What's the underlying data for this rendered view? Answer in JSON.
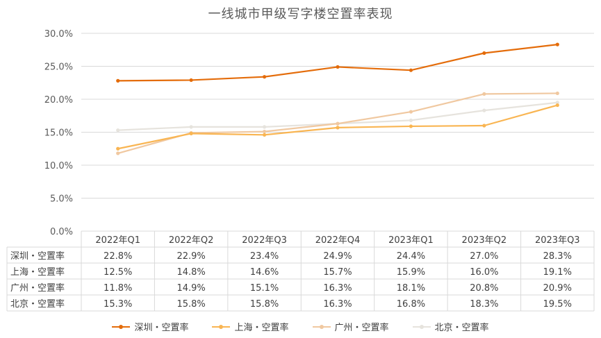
{
  "chart_data": {
    "type": "line",
    "title": "一线城市甲级写字楼空置率表现",
    "categories": [
      "2022年Q1",
      "2022年Q2",
      "2022年Q3",
      "2022年Q4",
      "2023年Q1",
      "2023年Q2",
      "2023年Q3"
    ],
    "y_ticks": [
      "30.0%",
      "25.0%",
      "20.0%",
      "15.0%",
      "10.0%",
      "5.0%",
      "0.0%"
    ],
    "ylim": [
      0,
      30
    ],
    "grid": true,
    "legend_position": "bottom",
    "series": [
      {
        "name": "深圳・空置率",
        "color": "#e46c0a",
        "values": [
          22.8,
          22.9,
          23.4,
          24.9,
          24.4,
          27.0,
          28.3
        ],
        "labels": [
          "22.8%",
          "22.9%",
          "23.4%",
          "24.9%",
          "24.4%",
          "27.0%",
          "28.3%"
        ]
      },
      {
        "name": "上海・空置率",
        "color": "#f9b552",
        "values": [
          12.5,
          14.8,
          14.6,
          15.7,
          15.9,
          16.0,
          19.1
        ],
        "labels": [
          "12.5%",
          "14.8%",
          "14.6%",
          "15.7%",
          "15.9%",
          "16.0%",
          "19.1%"
        ]
      },
      {
        "name": "广州・空置率",
        "color": "#f0c8a0",
        "values": [
          11.8,
          14.9,
          15.1,
          16.3,
          18.1,
          20.8,
          20.9
        ],
        "labels": [
          "11.8%",
          "14.9%",
          "15.1%",
          "16.3%",
          "18.1%",
          "20.8%",
          "20.9%"
        ]
      },
      {
        "name": "北京・空置率",
        "color": "#e6e3dd",
        "values": [
          15.3,
          15.8,
          15.8,
          16.3,
          16.8,
          18.3,
          19.5
        ],
        "labels": [
          "15.3%",
          "15.8%",
          "15.8%",
          "16.3%",
          "16.8%",
          "18.3%",
          "19.5%"
        ]
      }
    ]
  }
}
